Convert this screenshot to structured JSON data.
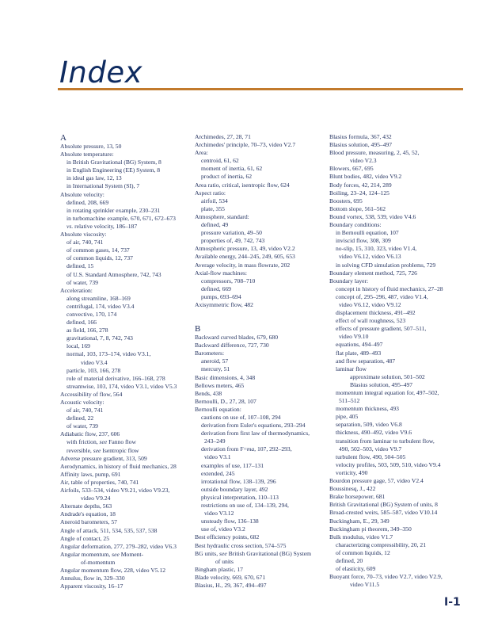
{
  "title": "Index",
  "page_number": "I-1",
  "colors": {
    "title": "#0f2b60",
    "rule": "#c27a2c",
    "text": "#1e2d5c"
  },
  "columns": [
    {
      "items": [
        {
          "h": "A"
        },
        {
          "l": 0,
          "t": "Absolute pressure, 13, 50"
        },
        {
          "l": 0,
          "t": "Absolute temperature:"
        },
        {
          "l": 1,
          "t": "in British Gravitational (BG) System, 8"
        },
        {
          "l": 1,
          "t": "in English Engineering (EE) System, 8"
        },
        {
          "l": 1,
          "t": "in ideal gas law, 12, 13"
        },
        {
          "l": 1,
          "t": "in International System (SI), 7"
        },
        {
          "l": 0,
          "t": "Absolute velocity:"
        },
        {
          "l": 1,
          "t": "defined, 208, 669"
        },
        {
          "l": 1,
          "t": "in rotating sprinkler example, 230–231"
        },
        {
          "l": 1,
          "t": "in turbomachine example, 670, 671, 672–673"
        },
        {
          "l": 1,
          "t": "",
          "i": "vs.",
          "r": " relative velocity, 186–187"
        },
        {
          "l": 0,
          "t": "Absolute viscosity:"
        },
        {
          "l": 1,
          "t": "of air, 740, 741"
        },
        {
          "l": 1,
          "t": "of common gases, 14, 737"
        },
        {
          "l": 1,
          "t": "of common liquids, 12, 737"
        },
        {
          "l": 1,
          "t": "defined, 15"
        },
        {
          "l": 1,
          "t": "of U.S. Standard Atmosphere, 742, 743"
        },
        {
          "l": 1,
          "t": "of water, 739"
        },
        {
          "l": 0,
          "t": "Acceleration:"
        },
        {
          "l": 1,
          "t": "along streamline, 168–169"
        },
        {
          "l": 1,
          "t": "centrifugal, 174, video V3.4"
        },
        {
          "l": 1,
          "t": "convective, 170, 174"
        },
        {
          "l": 1,
          "t": "defined, 166"
        },
        {
          "l": 1,
          "t": "as field, 166, 278"
        },
        {
          "l": 1,
          "t": "gravitational, 7, 8, 742, 743"
        },
        {
          "l": 1,
          "t": "local, 169"
        },
        {
          "l": 1,
          "t": "normal, 103, 173–174, video V3.1,"
        },
        {
          "l": 2,
          "t": "video V3.4"
        },
        {
          "l": 1,
          "t": "particle, 103, 166, 278"
        },
        {
          "l": 1,
          "t": "role of material derivative, 166–168, 278"
        },
        {
          "l": 1,
          "t": "streamwise, 103, 174, video V3.1, video V5.3"
        },
        {
          "l": 0,
          "t": "Accessibility of flow, 564"
        },
        {
          "l": 0,
          "t": "Acoustic velocity:"
        },
        {
          "l": 1,
          "t": "of air, 740, 741"
        },
        {
          "l": 1,
          "t": "defined, 22"
        },
        {
          "l": 1,
          "t": "of water, 739"
        },
        {
          "l": 0,
          "t": "Adiabatic flow, 237, 606"
        },
        {
          "l": 1,
          "t": "with friction, ",
          "i": "see",
          "r": " Fanno flow"
        },
        {
          "l": 1,
          "t": "reversible, ",
          "i": "see",
          "r": " Isentropic flow"
        },
        {
          "l": 0,
          "t": "Adverse pressure gradient, 313, 509"
        },
        {
          "l": 0,
          "t": "Aerodynamics, in history of fluid mechanics, 28"
        },
        {
          "l": 0,
          "t": "Affinity laws, pump, 691"
        },
        {
          "l": 0,
          "t": "Air, table of properties, 740, 741"
        },
        {
          "l": 0,
          "t": "Airfoils, 533–534, video V9.21, video V9.23,"
        },
        {
          "l": 2,
          "t": "video V9.24"
        },
        {
          "l": 0,
          "t": "Alternate depths, 563"
        },
        {
          "l": 0,
          "t": "Andrade's equation, 18"
        },
        {
          "l": 0,
          "t": "Aneroid barometers, 57"
        },
        {
          "l": 0,
          "t": "Angle of attack, 511, 534, 535, 537, 538"
        },
        {
          "l": 0,
          "t": "Angle of contact, 25"
        },
        {
          "l": 0,
          "t": "Angular deformation, 277, 279–282, video V6.3"
        },
        {
          "l": 0,
          "t": "Angular momentum, ",
          "i": "see",
          "r": " Moment-"
        },
        {
          "l": 2,
          "t": "of-momentum"
        },
        {
          "l": 0,
          "t": "Angular momentum flow, 228, video V5.12"
        },
        {
          "l": 0,
          "t": "Annulus, flow in, 329–330"
        },
        {
          "l": 0,
          "t": "Apparent viscosity, 16–17"
        }
      ]
    },
    {
      "items": [
        {
          "l": 0,
          "t": "Archimedes, 27, 28, 71"
        },
        {
          "l": 0,
          "t": "Archimedes' principle, 70–73, video V2.7"
        },
        {
          "l": 0,
          "t": "Area:"
        },
        {
          "l": 1,
          "t": "centroid, 61, 62"
        },
        {
          "l": 1,
          "t": "moment of inertia, 61, 62"
        },
        {
          "l": 1,
          "t": "product of inertia, 62"
        },
        {
          "l": 0,
          "t": "Area ratio, critical, isentropic flow, 624"
        },
        {
          "l": 0,
          "t": "Aspect ratio:"
        },
        {
          "l": 1,
          "t": "airfoil, 534"
        },
        {
          "l": 1,
          "t": "plate, 355"
        },
        {
          "l": 0,
          "t": "Atmosphere, standard:"
        },
        {
          "l": 1,
          "t": "defined, 49"
        },
        {
          "l": 1,
          "t": "pressure variation, 49–50"
        },
        {
          "l": 1,
          "t": "properties of, 49, 742, 743"
        },
        {
          "l": 0,
          "t": "Atmospheric pressure, 13, 49, video V2.2"
        },
        {
          "l": 0,
          "t": "Available energy, 244–245, 249, 605, 653"
        },
        {
          "l": 0,
          "t": "Average velocity, in mass flowrate, 202"
        },
        {
          "l": 0,
          "t": "Axial-flow machines:"
        },
        {
          "l": 1,
          "t": "compressors, 708–710"
        },
        {
          "l": 1,
          "t": "defined, 669"
        },
        {
          "l": 1,
          "t": "pumps, 693–694"
        },
        {
          "l": 0,
          "t": "Axisymmetric flow, 482"
        },
        {
          "h": "B",
          "gap": true
        },
        {
          "l": 0,
          "t": "Backward curved blades, 679, 680"
        },
        {
          "l": 0,
          "t": "Backward difference, 727, 730"
        },
        {
          "l": 0,
          "t": "Barometers:"
        },
        {
          "l": 1,
          "t": "aneroid, 57"
        },
        {
          "l": 1,
          "t": "mercury, 51"
        },
        {
          "l": 0,
          "t": "Basic dimensions, 4, 348"
        },
        {
          "l": 0,
          "t": "Bellows meters, 465"
        },
        {
          "l": 0,
          "t": "Bends, 438"
        },
        {
          "l": 0,
          "t": "Bernoulli, D., 27, 28, 107"
        },
        {
          "l": 0,
          "t": "Bernoulli equation:"
        },
        {
          "l": 1,
          "t": "cautions on use of, 107–108, 294"
        },
        {
          "l": 1,
          "t": "derivation from Euler's equations, 293–294"
        },
        {
          "l": 1,
          "t": "derivation from first law of thermodynamics,"
        },
        {
          "l": 3,
          "t": "243–249"
        },
        {
          "l": 1,
          "t": "derivation from F=",
          "i": "ma",
          "r": ", 107, 292–293,"
        },
        {
          "l": 3,
          "t": "video V3.1"
        },
        {
          "l": 1,
          "t": "examples of use, 117–131"
        },
        {
          "l": 1,
          "t": "extended, 245"
        },
        {
          "l": 1,
          "t": "irrotational flow, 138–139, 296"
        },
        {
          "l": 1,
          "t": "outside boundary layer, 492"
        },
        {
          "l": 1,
          "t": "physical interpretation, 110–113"
        },
        {
          "l": 1,
          "t": "restrictions on use of, 134–139, 294,"
        },
        {
          "l": 3,
          "t": "video V3.12"
        },
        {
          "l": 1,
          "t": "unsteady flow, 136–138"
        },
        {
          "l": 1,
          "t": "use of, video V3.2"
        },
        {
          "l": 0,
          "t": "Best efficiency points, 682"
        },
        {
          "l": 0,
          "t": "Best hydraulic cross section, 574–575"
        },
        {
          "l": 0,
          "t": "BG units, ",
          "i": "see",
          "r": " British Gravitational (BG) System"
        },
        {
          "l": 2,
          "t": "of units"
        },
        {
          "l": 0,
          "t": "Bingham plastic, 17"
        },
        {
          "l": 0,
          "t": "Blade velocity, 669, 670, 671"
        },
        {
          "l": 0,
          "t": "Blasius, H., 29, 367, 494–497"
        }
      ]
    },
    {
      "items": [
        {
          "l": 0,
          "t": "Blasius formula, 367, 432"
        },
        {
          "l": 0,
          "t": "Blasius solution, 495–497"
        },
        {
          "l": 0,
          "t": "Blood pressure, measuring, 2, 45, 52,"
        },
        {
          "l": 2,
          "t": "video V2.3"
        },
        {
          "l": 0,
          "t": "Blowers, 667, 695"
        },
        {
          "l": 0,
          "t": "Blunt bodies, 482, video V9.2"
        },
        {
          "l": 0,
          "t": "Body forces, 42, 214, 289"
        },
        {
          "l": 0,
          "t": "Boiling, 23–24, 124–125"
        },
        {
          "l": 0,
          "t": "Boosters, 695"
        },
        {
          "l": 0,
          "t": "Bottom slope, 561–562"
        },
        {
          "l": 0,
          "t": "Bound vortex, 538, 539, video V4.6"
        },
        {
          "l": 0,
          "t": "Boundary conditions:"
        },
        {
          "l": 1,
          "t": "in Bernoulli equation, 107"
        },
        {
          "l": 1,
          "t": "inviscid flow, 308, 309"
        },
        {
          "l": 1,
          "t": "no-slip, 15, 310, 323, video V1.4,"
        },
        {
          "l": 3,
          "t": "video V6.12, video V6.13"
        },
        {
          "l": 1,
          "t": "in solving CFD simulation problems, 729"
        },
        {
          "l": 0,
          "t": "Boundary element method, 725, 726"
        },
        {
          "l": 0,
          "t": "Boundary layer:"
        },
        {
          "l": 1,
          "t": "concept in history of fluid mechanics, 27–28"
        },
        {
          "l": 1,
          "t": "concept of, 295–296, 487, video V1.4,"
        },
        {
          "l": 3,
          "t": "video V6.12, video V9.12"
        },
        {
          "l": 1,
          "t": "displacement thickness, 491–492"
        },
        {
          "l": 1,
          "t": "effect of wall roughness, 523"
        },
        {
          "l": 1,
          "t": "effects of pressure gradient, 507–511,"
        },
        {
          "l": 3,
          "t": "video V9.10"
        },
        {
          "l": 1,
          "t": "equations, 494–497"
        },
        {
          "l": 1,
          "t": "flat plate, 489–493"
        },
        {
          "l": 1,
          "t": "and flow separation, 487"
        },
        {
          "l": 1,
          "t": "laminar flow"
        },
        {
          "l": 2,
          "t": "approximate solution, 501–502"
        },
        {
          "l": 2,
          "t": "Blasius solution, 495–497"
        },
        {
          "l": 1,
          "t": "momentum integral equation for, 497–502,"
        },
        {
          "l": 3,
          "t": "511–512"
        },
        {
          "l": 1,
          "t": "momentum thickness, 493"
        },
        {
          "l": 1,
          "t": "pipe, 405"
        },
        {
          "l": 1,
          "t": "separation, 509, video V6.8"
        },
        {
          "l": 1,
          "t": "thickness, 490–492, video V9.6"
        },
        {
          "l": 1,
          "t": "transition from laminar to turbulent flow,"
        },
        {
          "l": 3,
          "t": "490, 502–503, video V9.7"
        },
        {
          "l": 1,
          "t": "turbulent flow, 490, 504–505"
        },
        {
          "l": 1,
          "t": "velocity profiles, 503, 509, 510, video V9.4"
        },
        {
          "l": 1,
          "t": "vorticity, 490"
        },
        {
          "l": 0,
          "t": "Bourdon pressure gage, 57, video V2.4"
        },
        {
          "l": 0,
          "t": "Boussinesq, J., 422"
        },
        {
          "l": 0,
          "t": "Brake horsepower, 681"
        },
        {
          "l": 0,
          "t": "British Gravitational (BG) System of units, 8"
        },
        {
          "l": 0,
          "t": "Broad-crested weirs, 585–587, video V10.14"
        },
        {
          "l": 0,
          "t": "Buckingham, E., 29, 349"
        },
        {
          "l": 0,
          "t": "Buckingham pi theorem, 349–350"
        },
        {
          "l": 0,
          "t": "Bulk modulus, video V1.7"
        },
        {
          "l": 1,
          "t": "characterizing compressibility, 20, 21"
        },
        {
          "l": 1,
          "t": "of common liquids, 12"
        },
        {
          "l": 1,
          "t": "defined, 20"
        },
        {
          "l": 1,
          "t": "of elasticity, 609"
        },
        {
          "l": 0,
          "t": "Buoyant force, 70–73, video V2.7, video V2.9,"
        },
        {
          "l": 2,
          "t": "video V11.5"
        }
      ]
    }
  ]
}
